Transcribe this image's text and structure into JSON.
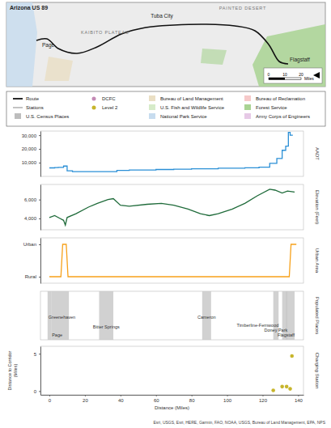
{
  "map": {
    "title": "Arizona US 89",
    "labels": [
      "KAIBITO PLATEAU",
      "Tuba City",
      "PAINTED DESERT",
      "Page",
      "Flagstaff"
    ],
    "scale": {
      "ticks": [
        0,
        10,
        20
      ],
      "unit": "Miles"
    }
  },
  "legend": {
    "items": [
      {
        "label": "Route",
        "color": "#111111",
        "marker": "line"
      },
      {
        "label": "Stations",
        "color": "#555555",
        "marker": "thin-line"
      },
      {
        "label": "U.S. Census Places",
        "color": "#bdbdbd",
        "marker": "square"
      },
      {
        "label": "DCFC",
        "color": "#c48ab5",
        "marker": "circle"
      },
      {
        "label": "Level 2",
        "color": "#c7b52b",
        "marker": "circle"
      },
      {
        "label": "Bureau of Land Management",
        "color": "#eadfc4",
        "marker": "square"
      },
      {
        "label": "U.S. Fish and Wildlife Service",
        "color": "#d6ebc9",
        "marker": "square"
      },
      {
        "label": "National Park Service",
        "color": "#c7dcef",
        "marker": "square"
      },
      {
        "label": "Bureau of Reclamation",
        "color": "#f6c9c9",
        "marker": "square"
      },
      {
        "label": "Forest Service",
        "color": "#a9d393",
        "marker": "square"
      },
      {
        "label": "Army Corps of Engineers",
        "color": "#e6c9e6",
        "marker": "square"
      }
    ]
  },
  "chart_data": [
    {
      "type": "line",
      "title": "AADT",
      "line_style": "step",
      "color": "#2a8fd6",
      "x": [
        0,
        1,
        3,
        5,
        8,
        10,
        13,
        24,
        38,
        45,
        60,
        70,
        80,
        95,
        110,
        118,
        124,
        128,
        131,
        133,
        134.5,
        135.5,
        137
      ],
      "values": [
        6200,
        6200,
        6400,
        6600,
        7500,
        4000,
        3500,
        3500,
        4300,
        4600,
        5000,
        5200,
        5500,
        6000,
        6300,
        6700,
        9500,
        13000,
        19000,
        22000,
        32000,
        30000,
        30000
      ],
      "xlim": [
        -5,
        143
      ],
      "ylim": [
        0,
        33000
      ],
      "yticks": [
        {
          "value": 10000,
          "label": "10,000"
        },
        {
          "value": 20000,
          "label": "20,000"
        },
        {
          "value": 30000,
          "label": "30,000"
        }
      ],
      "tick_labels": "y"
    },
    {
      "type": "line",
      "title": "Elevation (Feet)",
      "color": "#1f6b3a",
      "x": [
        0,
        3,
        6,
        8,
        9,
        10,
        15,
        22,
        27,
        33,
        36,
        40,
        45,
        55,
        63,
        70,
        78,
        85,
        90,
        95,
        103,
        110,
        117,
        124,
        127,
        131,
        134,
        138
      ],
      "values": [
        4100,
        4300,
        4000,
        3800,
        3300,
        4100,
        4500,
        5200,
        5600,
        6000,
        6100,
        5400,
        5300,
        5500,
        5600,
        5400,
        5000,
        4500,
        4300,
        4500,
        5000,
        5600,
        6400,
        7100,
        7000,
        6700,
        6900,
        6800
      ],
      "xlim": [
        -5,
        143
      ],
      "ylim": [
        2800,
        7600
      ],
      "yticks": [
        {
          "value": 4000,
          "label": "4,000"
        },
        {
          "value": 6000,
          "label": "6,000"
        }
      ],
      "tick_labels": "y"
    },
    {
      "type": "line",
      "title": "Urban Area",
      "color": "#f7a11a",
      "x": [
        0,
        6.5,
        7.5,
        9.5,
        10.5,
        135,
        136,
        139
      ],
      "values": [
        0,
        0,
        1,
        1,
        0,
        0,
        1,
        1
      ],
      "xlim": [
        -5,
        143
      ],
      "ylim": [
        -0.2,
        1.2
      ],
      "yticks": [
        {
          "value": 0,
          "label": "Rural"
        },
        {
          "value": 1,
          "label": "Urban"
        }
      ],
      "tick_labels": "y"
    },
    {
      "type": "span",
      "title": "Populated Places",
      "color": "#c9c9c9",
      "places": [
        {
          "name": "Greenehaven",
          "start": -1,
          "end": 1
        },
        {
          "name": "Page",
          "start": 1,
          "end": 11
        },
        {
          "name": "Bitter Springs",
          "start": 28,
          "end": 36
        },
        {
          "name": "Cameron",
          "start": 86,
          "end": 91
        },
        {
          "name": "Timberline-Fernwood",
          "start": 126,
          "end": 129
        },
        {
          "name": "Doney Park",
          "start": 131,
          "end": 134
        },
        {
          "name": "Flagstaff",
          "start": 133,
          "end": 138
        }
      ],
      "xlim": [
        -5,
        143
      ],
      "tick_labels": false
    },
    {
      "type": "scatter",
      "title": "Charging Station",
      "color": "#c7b52b",
      "y_label": [
        "Distance to Corridor",
        "(Miles)"
      ],
      "x_label": "Distance (Miles)",
      "x": [
        126,
        131,
        133.5,
        135.5,
        136.5
      ],
      "values": [
        0.1,
        0.6,
        0.6,
        0.3,
        4.7
      ],
      "xlim": [
        -5,
        143
      ],
      "ylim": [
        -0.5,
        6
      ],
      "xticks": [
        0,
        20,
        40,
        60,
        80,
        100,
        120,
        140
      ],
      "yticks": [
        0,
        5
      ]
    }
  ],
  "credit": "Esri, USGS, Esri, HERE, Garmin, FAO, NOAA, USGS, Bureau of Land Management, EPA, NPS"
}
